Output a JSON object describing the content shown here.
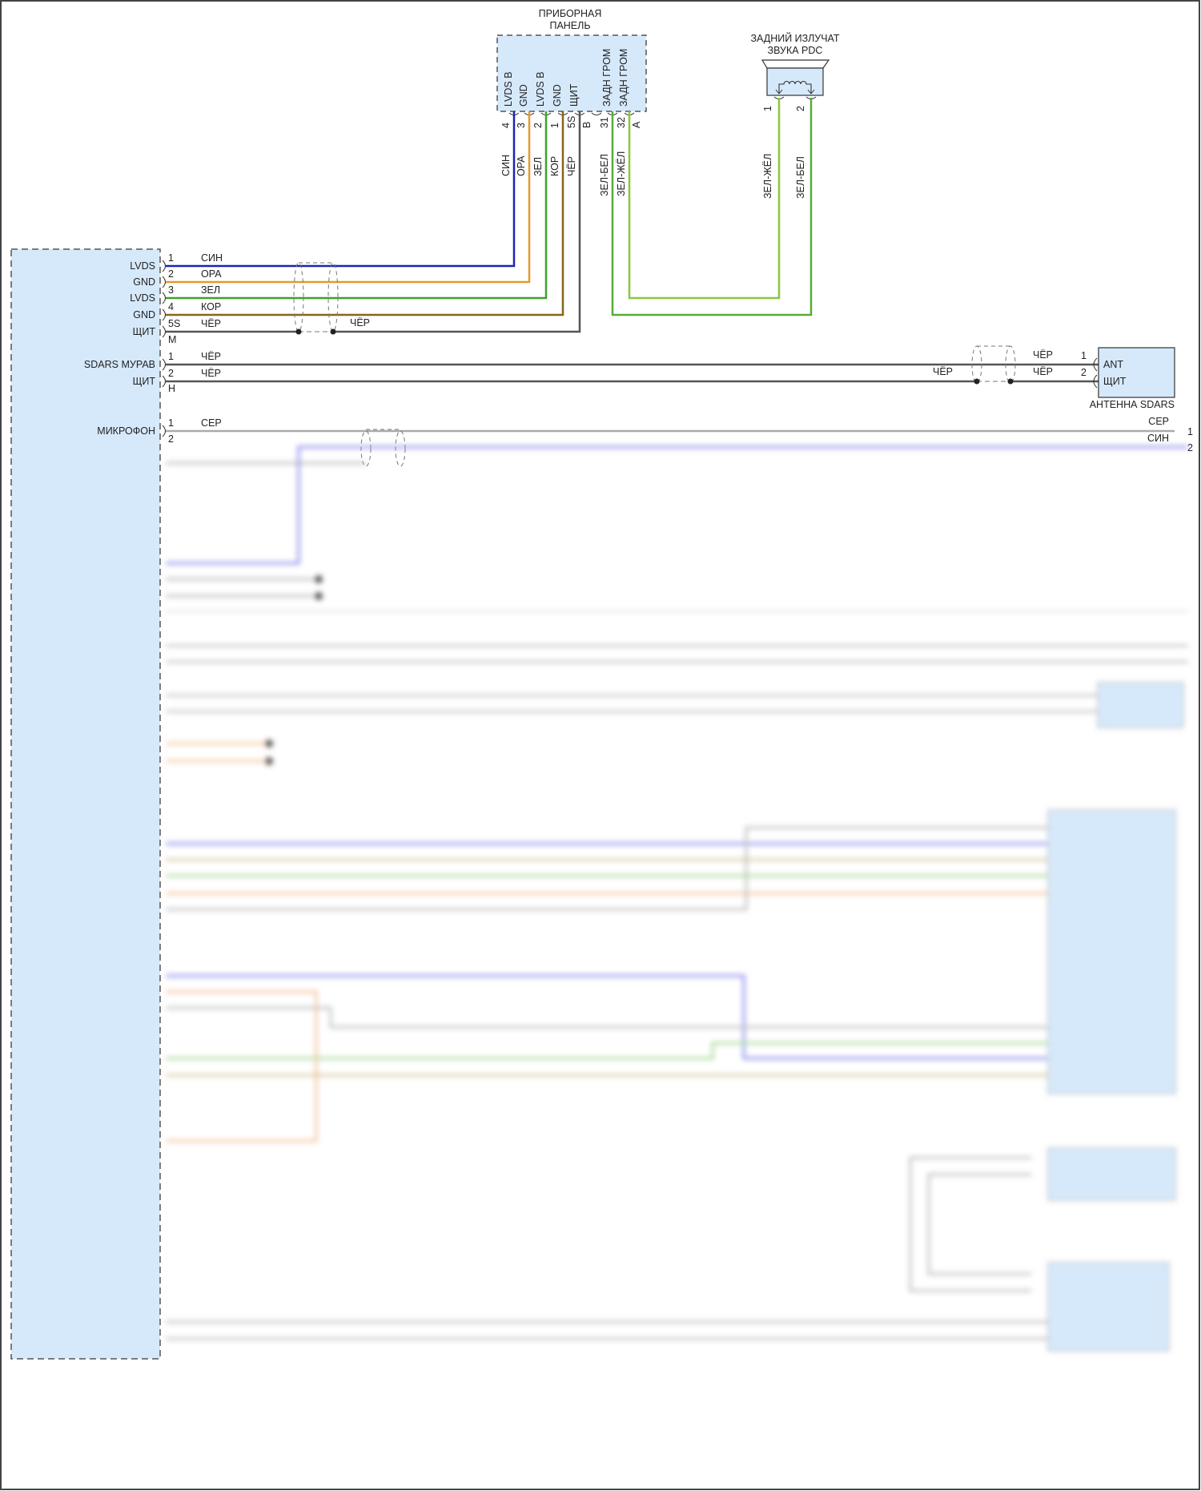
{
  "colors": {
    "blue": "#1c22b0",
    "orange": "#e39a2f",
    "green": "#3da22c",
    "brown": "#86661a",
    "black": "#555555",
    "grey": "#aaaaaa",
    "green_yellow": "#8cc63f",
    "green_white": "#57ad35",
    "box_fill": "#d6e9fb"
  },
  "instrument_panel": {
    "title_line1": "ПРИБОРНАЯ",
    "title_line2": "ПАНЕЛЬ",
    "pins": [
      {
        "label": "LVDS B",
        "num": "4",
        "wire": "СИН"
      },
      {
        "label": "GND",
        "num": "3",
        "wire": "ОРА"
      },
      {
        "label": "LVDS B",
        "num": "2",
        "wire": "ЗЕЛ"
      },
      {
        "label": "GND",
        "num": "1",
        "wire": "КОР"
      },
      {
        "label": "ЩИТ",
        "num": "5S",
        "wire": "ЧЁР"
      },
      {
        "label": "ЗАДН ГРОМ",
        "num": "31",
        "wire": "ЗЕЛ-БЕЛ"
      },
      {
        "label": "ЗАДН ГРОМ",
        "num": "32",
        "wire": "ЗЕЛ-ЖЁЛ"
      }
    ],
    "connector_b": "B",
    "connector_a": "A"
  },
  "pdc_speaker": {
    "title_line1": "ЗАДНИЙ ИЗЛУЧАТ",
    "title_line2": "ЗВУКА PDC",
    "pins": [
      {
        "num": "1",
        "wire": "ЗЕЛ-ЖЁЛ"
      },
      {
        "num": "2",
        "wire": "ЗЕЛ-БЕЛ"
      }
    ]
  },
  "main_module": {
    "lvds_group": [
      {
        "label": "LVDS",
        "num": "1",
        "wire": "СИН"
      },
      {
        "label": "GND",
        "num": "2",
        "wire": "ОРА"
      },
      {
        "label": "LVDS",
        "num": "3",
        "wire": "ЗЕЛ"
      },
      {
        "label": "GND",
        "num": "4",
        "wire": "КОР"
      },
      {
        "label": "ЩИТ",
        "num": "5S",
        "wire": "ЧЁР"
      }
    ],
    "lvds_connector": "M",
    "lvds_shield_wire": "ЧЁР",
    "sdars_group": [
      {
        "label": "SDARS МУРАВ",
        "num": "1",
        "wire": "ЧЁР"
      },
      {
        "label": "ЩИТ",
        "num": "2",
        "wire": "ЧЁР"
      }
    ],
    "sdars_connector": "H",
    "mic": {
      "label": "МИКРОФОН",
      "num1": "1",
      "wire1": "СЕР",
      "num2": "2"
    }
  },
  "sdars_antenna": {
    "title": "АНТЕННА SDARS",
    "pins": [
      {
        "label": "ANT",
        "num": "1",
        "wire": "ЧЁР"
      },
      {
        "label": "ЩИТ",
        "num": "2",
        "wire": "ЧЁР"
      }
    ],
    "shield_wire": "ЧЁР"
  },
  "mic_right": {
    "wire1": "СЕР",
    "num1": "1",
    "wire2": "СИН",
    "num2": "2"
  }
}
